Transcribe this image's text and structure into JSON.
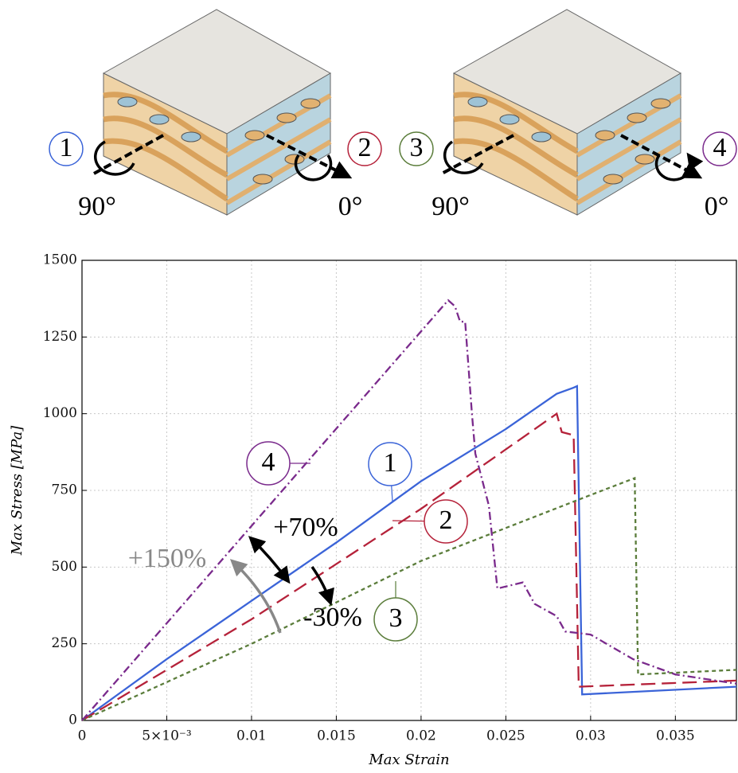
{
  "illustration": {
    "panels": [
      {
        "labels": [
          "1",
          "2"
        ],
        "angles": [
          "90°",
          "0°"
        ]
      },
      {
        "labels": [
          "3",
          "4"
        ],
        "angles": [
          "90°",
          "0°"
        ]
      }
    ]
  },
  "chart_data": {
    "type": "line",
    "xlabel": "Max Strain",
    "ylabel": "Max Stress [MPa]",
    "xlim": [
      0,
      0.0386
    ],
    "ylim": [
      0,
      1500
    ],
    "xticks": [
      0,
      {
        "value": 0.005,
        "label": "5×10⁻³"
      },
      0.01,
      0.015,
      0.02,
      0.025,
      0.03,
      0.035
    ],
    "yticks": [
      0,
      250,
      500,
      750,
      1000,
      1250,
      1500
    ],
    "grid": true,
    "series": [
      {
        "name": "1",
        "color": "#3b64d8",
        "dash": "none",
        "x": [
          0,
          0.005,
          0.01,
          0.015,
          0.02,
          0.025,
          0.028,
          0.029,
          0.0292,
          0.0295,
          0.0386
        ],
        "values": [
          0,
          200,
          390,
          580,
          780,
          950,
          1065,
          1085,
          1090,
          85,
          110
        ]
      },
      {
        "name": "2",
        "color": "#b5223a",
        "dash": "18 8",
        "x": [
          0,
          0.01,
          0.02,
          0.028,
          0.0283,
          0.029,
          0.0293,
          0.0386
        ],
        "values": [
          0,
          330,
          690,
          1000,
          940,
          930,
          110,
          130
        ]
      },
      {
        "name": "3",
        "color": "#5b7d3b",
        "dash": "5 4",
        "x": [
          0,
          0.01,
          0.02,
          0.03,
          0.0326,
          0.0328,
          0.0386
        ],
        "values": [
          0,
          250,
          520,
          735,
          790,
          150,
          165
        ]
      },
      {
        "name": "4",
        "color": "#7a2a8c",
        "dash": "10 4 2 4",
        "x": [
          0,
          0.0216,
          0.022,
          0.0223,
          0.0226,
          0.023,
          0.0232,
          0.024,
          0.0245,
          0.026,
          0.0267,
          0.028,
          0.0285,
          0.03,
          0.0325,
          0.035,
          0.0386
        ],
        "values": [
          0,
          1370,
          1350,
          1300,
          1300,
          1000,
          870,
          700,
          430,
          450,
          380,
          340,
          290,
          280,
          200,
          150,
          120
        ]
      }
    ],
    "annotations": [
      "+70%",
      "+150%",
      "-30%"
    ]
  }
}
